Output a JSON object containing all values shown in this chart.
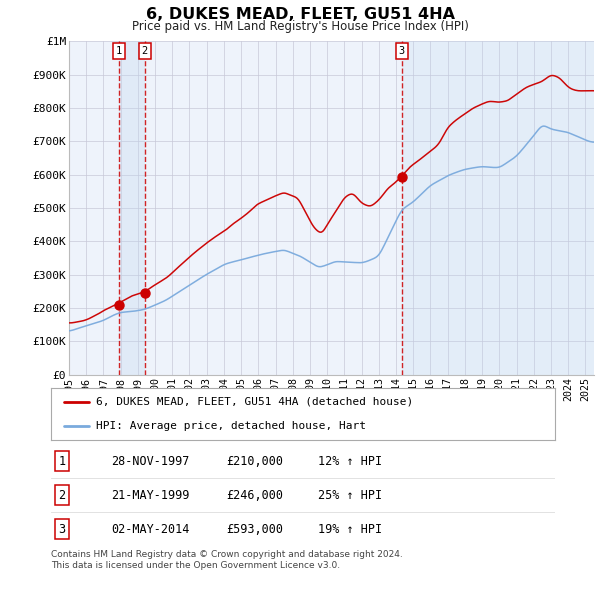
{
  "title": "6, DUKES MEAD, FLEET, GU51 4HA",
  "subtitle": "Price paid vs. HM Land Registry's House Price Index (HPI)",
  "ylim": [
    0,
    1000000
  ],
  "yticks": [
    0,
    100000,
    200000,
    300000,
    400000,
    500000,
    600000,
    700000,
    800000,
    900000,
    1000000
  ],
  "ytick_labels": [
    "£0",
    "£100K",
    "£200K",
    "£300K",
    "£400K",
    "£500K",
    "£600K",
    "£700K",
    "£800K",
    "£900K",
    "£1M"
  ],
  "xmin": 1995.0,
  "xmax": 2025.5,
  "xticks": [
    1995,
    1996,
    1997,
    1998,
    1999,
    2000,
    2001,
    2002,
    2003,
    2004,
    2005,
    2006,
    2007,
    2008,
    2009,
    2010,
    2011,
    2012,
    2013,
    2014,
    2015,
    2016,
    2017,
    2018,
    2019,
    2020,
    2021,
    2022,
    2023,
    2024,
    2025
  ],
  "sale_color": "#cc0000",
  "hpi_color": "#7aaadd",
  "vline_color": "#cc0000",
  "grid_color": "#cccccc",
  "chart_bg": "#eef3fb",
  "sales": [
    {
      "date_num": 1997.91,
      "price": 210000,
      "label": "1"
    },
    {
      "date_num": 1999.39,
      "price": 246000,
      "label": "2"
    },
    {
      "date_num": 2014.33,
      "price": 593000,
      "label": "3"
    }
  ],
  "table_rows": [
    {
      "num": "1",
      "date": "28-NOV-1997",
      "price": "£210,000",
      "change": "12% ↑ HPI"
    },
    {
      "num": "2",
      "date": "21-MAY-1999",
      "price": "£246,000",
      "change": "25% ↑ HPI"
    },
    {
      "num": "3",
      "date": "02-MAY-2014",
      "price": "£593,000",
      "change": "19% ↑ HPI"
    }
  ],
  "legend_entries": [
    "6, DUKES MEAD, FLEET, GU51 4HA (detached house)",
    "HPI: Average price, detached house, Hart"
  ],
  "footer_line1": "Contains HM Land Registry data © Crown copyright and database right 2024.",
  "footer_line2": "This data is licensed under the Open Government Licence v3.0."
}
